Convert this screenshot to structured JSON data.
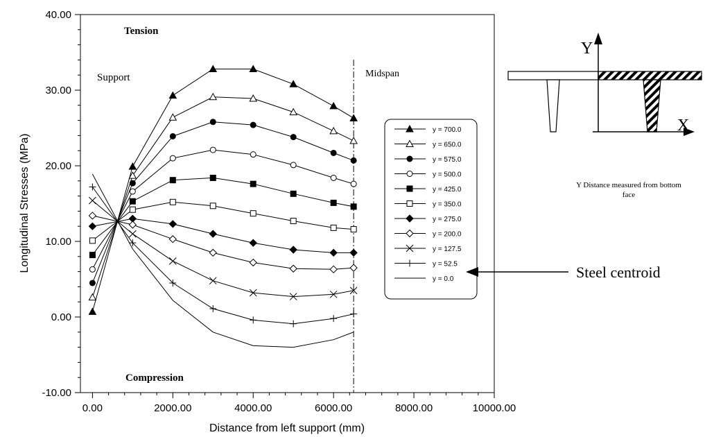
{
  "chart_data": {
    "type": "line",
    "xlabel": "Distance from left support (mm)",
    "ylabel": "Longitudinal Stresses (MPa)",
    "xlim": [
      -300,
      10000
    ],
    "ylim": [
      -10,
      40
    ],
    "x_ticks": [
      "0.00",
      "2000.00",
      "4000.00",
      "6000.00",
      "8000.00",
      "10000.00"
    ],
    "x_tick_values": [
      0,
      2000,
      4000,
      6000,
      8000,
      10000
    ],
    "y_ticks": [
      "-10.00",
      "0.00",
      "10.00",
      "20.00",
      "30.00",
      "40.00"
    ],
    "y_tick_values": [
      -10,
      0,
      10,
      20,
      30,
      40
    ],
    "grid": false,
    "legend_position": "right",
    "x": [
      0,
      1000,
      2000,
      3000,
      4000,
      5000,
      6000,
      6500
    ],
    "series": [
      {
        "name": "y = 700.0",
        "marker": "triangle-filled",
        "values": [
          0.7,
          19.9,
          29.3,
          32.8,
          32.8,
          30.8,
          27.9,
          26.3
        ]
      },
      {
        "name": "y = 650.0",
        "marker": "triangle-open",
        "values": [
          2.6,
          18.7,
          26.4,
          29.1,
          28.9,
          27.1,
          24.6,
          23.3
        ]
      },
      {
        "name": "y = 575.0",
        "marker": "circle-filled",
        "values": [
          4.5,
          17.7,
          23.9,
          25.8,
          25.4,
          23.8,
          21.7,
          20.7
        ]
      },
      {
        "name": "y = 500.0",
        "marker": "circle-open",
        "values": [
          6.3,
          16.6,
          21.0,
          22.1,
          21.5,
          20.1,
          18.4,
          17.6
        ]
      },
      {
        "name": "y = 425.0",
        "marker": "square-filled",
        "values": [
          8.2,
          15.3,
          18.1,
          18.4,
          17.6,
          16.3,
          15.1,
          14.6
        ]
      },
      {
        "name": "y = 350.0",
        "marker": "square-open",
        "values": [
          10.1,
          14.2,
          15.2,
          14.7,
          13.7,
          12.7,
          11.8,
          11.6
        ]
      },
      {
        "name": "y = 275.0",
        "marker": "diamond-filled",
        "values": [
          12.0,
          13.0,
          12.3,
          11.0,
          9.8,
          8.9,
          8.5,
          8.5
        ]
      },
      {
        "name": "y = 200.0",
        "marker": "diamond-open",
        "values": [
          13.4,
          12.2,
          10.3,
          8.5,
          7.2,
          6.4,
          6.3,
          6.5
        ]
      },
      {
        "name": "y = 127.5",
        "marker": "x",
        "values": [
          15.4,
          11.0,
          7.4,
          4.8,
          3.2,
          2.7,
          3.0,
          3.5
        ]
      },
      {
        "name": "y = 52.5",
        "marker": "plus",
        "values": [
          17.2,
          9.8,
          4.5,
          1.1,
          -0.4,
          -0.9,
          -0.2,
          0.4
        ]
      },
      {
        "name": "y = 0.0",
        "marker": "none",
        "values": [
          18.9,
          9.0,
          2.2,
          -2.0,
          -3.8,
          -4.0,
          -3.0,
          -2.0
        ]
      }
    ],
    "annotations": {
      "tension": "Tension",
      "compression": "Compression",
      "support": "Support",
      "midspan": "Midspan",
      "midspan_x": 6500,
      "y_note": "Y Distance measured from bottom face",
      "steel_centroid": "Steel centroid",
      "axis_y_letter": "Y",
      "axis_x_letter": "X"
    }
  }
}
